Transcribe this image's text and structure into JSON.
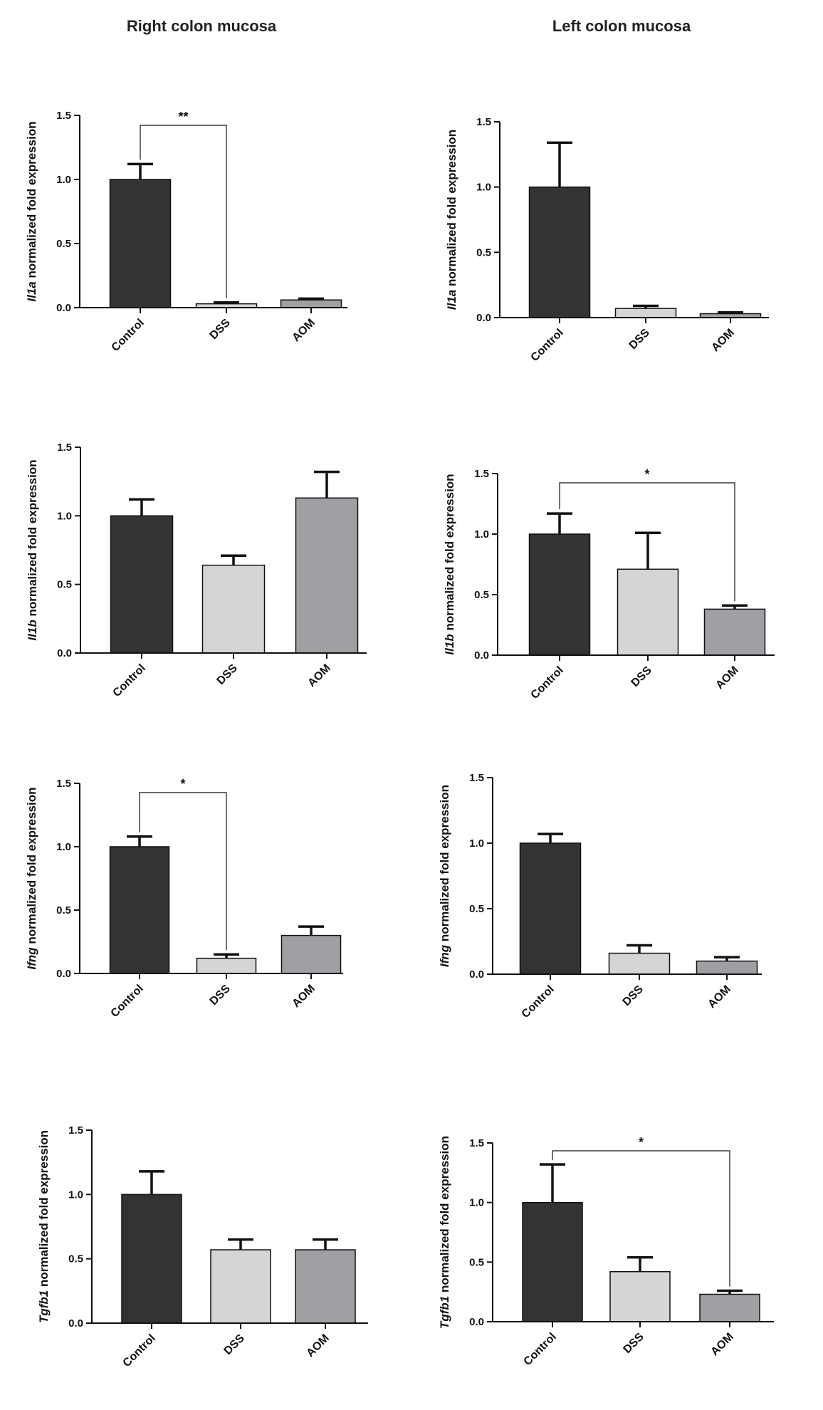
{
  "columns": {
    "right": "Right colon mucosa",
    "left": "Left colon mucosa"
  },
  "chart_data": [
    {
      "type": "bar",
      "column": "right",
      "gene": "Il1a",
      "ylabel_suffix": " normalized fold expression",
      "categories": [
        "Control",
        "DSS",
        "AOM"
      ],
      "values": [
        1.0,
        0.03,
        0.06
      ],
      "errors": [
        0.12,
        0.01,
        0.01
      ],
      "colors": [
        "#333333",
        "#d5d5d5",
        "#a0a0a4"
      ],
      "ylim": [
        0,
        1.5
      ],
      "yticks": [
        "0.0",
        "0.5",
        "1.0",
        "1.5"
      ],
      "significance": [
        {
          "from": 0,
          "to": 1,
          "label": "**"
        }
      ]
    },
    {
      "type": "bar",
      "column": "left",
      "gene": "Il1a",
      "ylabel_suffix": " normalized fold expression",
      "categories": [
        "Control",
        "DSS",
        "AOM"
      ],
      "values": [
        1.0,
        0.07,
        0.03
      ],
      "errors": [
        0.34,
        0.02,
        0.01
      ],
      "colors": [
        "#333333",
        "#d5d5d5",
        "#a0a0a4"
      ],
      "ylim": [
        0,
        1.5
      ],
      "yticks": [
        "0.0",
        "0.5",
        "1.0",
        "1.5"
      ],
      "significance": []
    },
    {
      "type": "bar",
      "column": "right",
      "gene": "Il1b",
      "ylabel_suffix": " normalized fold expression",
      "categories": [
        "Control",
        "DSS",
        "AOM"
      ],
      "values": [
        1.0,
        0.64,
        1.13
      ],
      "errors": [
        0.12,
        0.07,
        0.19
      ],
      "colors": [
        "#333333",
        "#d5d5d5",
        "#a0a0a4"
      ],
      "ylim": [
        0,
        1.5
      ],
      "yticks": [
        "0.0",
        "0.5",
        "1.0",
        "1.5"
      ],
      "significance": []
    },
    {
      "type": "bar",
      "column": "left",
      "gene": "Il1b",
      "ylabel_suffix": " normalized fold expression",
      "categories": [
        "Control",
        "DSS",
        "AOM"
      ],
      "values": [
        1.0,
        0.71,
        0.38
      ],
      "errors": [
        0.17,
        0.3,
        0.03
      ],
      "colors": [
        "#333333",
        "#d5d5d5",
        "#a0a0a4"
      ],
      "ylim": [
        0,
        1.5
      ],
      "yticks": [
        "0.0",
        "0.5",
        "1.0",
        "1.5"
      ],
      "significance": [
        {
          "from": 0,
          "to": 2,
          "label": "*"
        }
      ]
    },
    {
      "type": "bar",
      "column": "right",
      "gene": "Ifng",
      "ylabel_suffix": " normalized fold expression",
      "categories": [
        "Control",
        "DSS",
        "AOM"
      ],
      "values": [
        1.0,
        0.12,
        0.3
      ],
      "errors": [
        0.08,
        0.03,
        0.07
      ],
      "colors": [
        "#333333",
        "#d5d5d5",
        "#a0a0a4"
      ],
      "ylim": [
        0,
        1.5
      ],
      "yticks": [
        "0.0",
        "0.5",
        "1.0",
        "1.5"
      ],
      "significance": [
        {
          "from": 0,
          "to": 1,
          "label": "*"
        }
      ]
    },
    {
      "type": "bar",
      "column": "left",
      "gene": "Ifng",
      "ylabel_suffix": " normalized fold expression",
      "categories": [
        "Control",
        "DSS",
        "AOM"
      ],
      "values": [
        1.0,
        0.16,
        0.1
      ],
      "errors": [
        0.07,
        0.06,
        0.03
      ],
      "colors": [
        "#333333",
        "#d5d5d5",
        "#a0a0a4"
      ],
      "ylim": [
        0,
        1.5
      ],
      "yticks": [
        "0.0",
        "0.5",
        "1.0",
        "1.5"
      ],
      "significance": []
    },
    {
      "type": "bar",
      "column": "right",
      "gene": "Tgfb1",
      "ylabel_suffix": " normalized fold expression",
      "categories": [
        "Control",
        "DSS",
        "AOM"
      ],
      "values": [
        1.0,
        0.57,
        0.57
      ],
      "errors": [
        0.18,
        0.08,
        0.08
      ],
      "colors": [
        "#333333",
        "#d5d5d5",
        "#a0a0a4"
      ],
      "ylim": [
        0,
        1.5
      ],
      "yticks": [
        "0.0",
        "0.5",
        "1.0",
        "1.5"
      ],
      "significance": []
    },
    {
      "type": "bar",
      "column": "left",
      "gene": "Tgfb1",
      "ylabel_suffix": " normalized fold expression",
      "categories": [
        "Control",
        "DSS",
        "AOM"
      ],
      "values": [
        1.0,
        0.42,
        0.23
      ],
      "errors": [
        0.32,
        0.12,
        0.03
      ],
      "colors": [
        "#333333",
        "#d5d5d5",
        "#a0a0a4"
      ],
      "ylim": [
        0,
        1.5
      ],
      "yticks": [
        "0.0",
        "0.5",
        "1.0",
        "1.5"
      ],
      "significance": [
        {
          "from": 0,
          "to": 2,
          "label": "*"
        }
      ]
    }
  ]
}
